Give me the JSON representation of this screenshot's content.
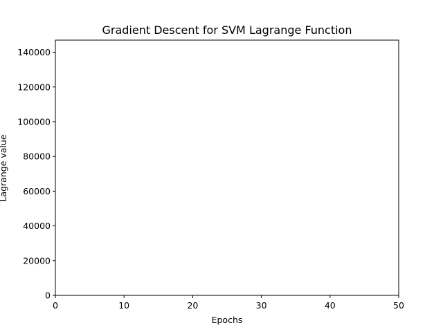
{
  "chart_data": {
    "type": "line",
    "title": "Gradient Descent for SVM Lagrange Function",
    "xlabel": "Epochs",
    "ylabel": "Lagrange value",
    "xlim": [
      0,
      50
    ],
    "ylim": [
      0,
      147000
    ],
    "x_ticks": [
      0,
      10,
      20,
      30,
      40,
      50
    ],
    "y_ticks": [
      0,
      20000,
      40000,
      60000,
      80000,
      100000,
      120000,
      140000
    ],
    "grid": false,
    "legend": "none",
    "series": [
      {
        "x": [],
        "y": []
      }
    ],
    "colors": {
      "frame": "#000000",
      "background": "#ffffff"
    }
  }
}
